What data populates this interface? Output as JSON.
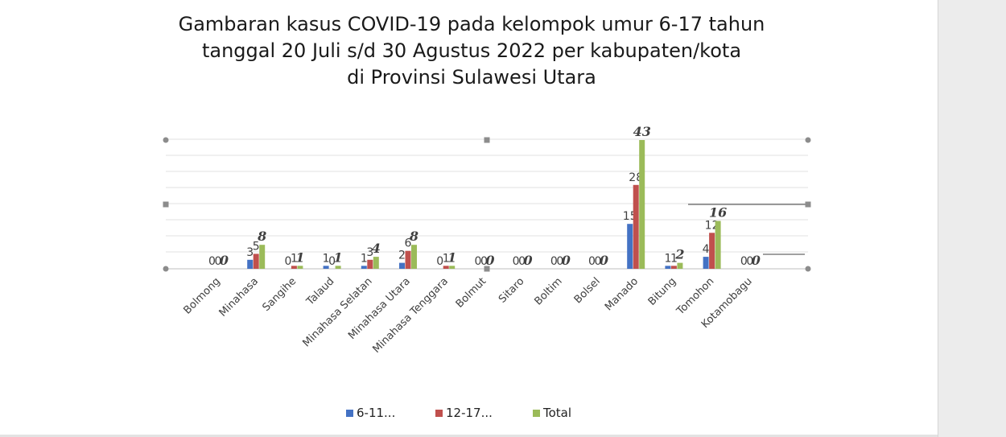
{
  "colors": {
    "series_6_11": "#4472c4",
    "series_12_17": "#c0504d",
    "series_total": "#9bbb59",
    "gridline": "#e0e0e0",
    "axis": "#bfbfbf",
    "handle": "#8c8c8c",
    "panel": "#ececec"
  },
  "chart_data": {
    "type": "bar",
    "title": [
      "Gambaran kasus COVID-19 pada kelompok umur 6-17 tahun",
      "tanggal 20 Juli s/d 30 Agustus 2022 per kabupaten/kota",
      "di Provinsi Sulawesi Utara"
    ],
    "categories": [
      "Bolmong",
      "Minahasa",
      "Sangihe",
      "Talaud",
      "Minahasa Selatan",
      "Minahasa Utara",
      "Minahasa Tenggara",
      "Bolmut",
      "Sitaro",
      "Boltim",
      "Bolsel",
      "Manado",
      "Bitung",
      "Tomohon",
      "Kotamobagu"
    ],
    "series": [
      {
        "name": "6-11...",
        "values": [
          0,
          3,
          0,
          1,
          1,
          2,
          0,
          0,
          0,
          0,
          0,
          15,
          1,
          4,
          0
        ]
      },
      {
        "name": "12-17...",
        "values": [
          0,
          5,
          1,
          0,
          3,
          6,
          1,
          0,
          0,
          0,
          0,
          28,
          1,
          12,
          0
        ]
      },
      {
        "name": "Total",
        "values": [
          0,
          8,
          1,
          1,
          4,
          8,
          1,
          0,
          0,
          0,
          0,
          43,
          2,
          16,
          0
        ]
      }
    ],
    "ylim": [
      0,
      43
    ],
    "grid": true,
    "legend_position": "bottom",
    "xlabel": "",
    "ylabel": ""
  }
}
